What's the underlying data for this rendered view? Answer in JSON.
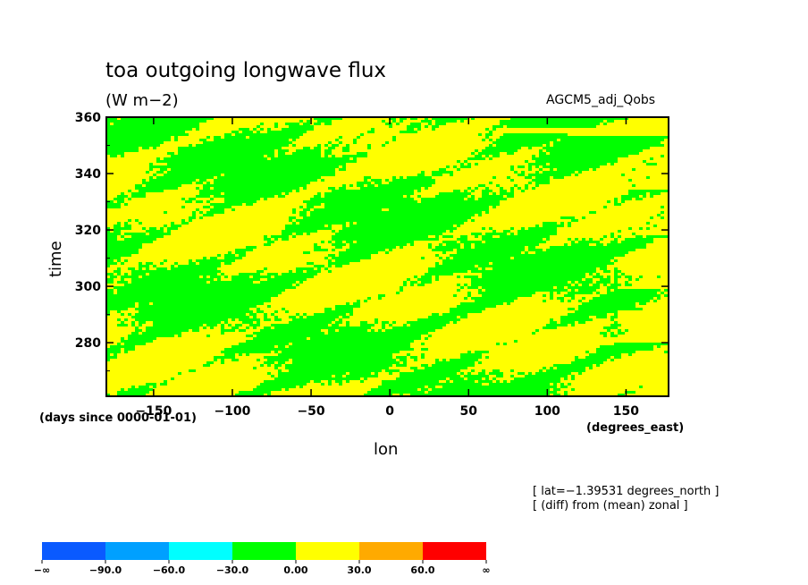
{
  "header": {
    "title": "toa outgoing longwave flux",
    "units": "(W m−2)",
    "model": "AGCM5_adj_Qobs"
  },
  "footer": {
    "time_units": "(days since 0000-01-01)",
    "lon_units": "(degrees_east)",
    "note_lat": "[ lat=−1.39531 degrees_north ]",
    "note_diff": "[ (diff) from (mean) zonal ]"
  },
  "chart_data": {
    "type": "heatmap",
    "title": "toa outgoing longwave flux",
    "subtitle": "(W m−2)",
    "xlabel": "lon",
    "ylabel": "time",
    "xlim": [
      -180,
      177
    ],
    "ylim": [
      261,
      360
    ],
    "x_ticks": [
      {
        "value": -150,
        "label": "−150"
      },
      {
        "value": -100,
        "label": "−100"
      },
      {
        "value": -50,
        "label": "−50"
      },
      {
        "value": 0,
        "label": "0"
      },
      {
        "value": 50,
        "label": "50"
      },
      {
        "value": 100,
        "label": "100"
      },
      {
        "value": 150,
        "label": "150"
      }
    ],
    "y_ticks": [
      {
        "value": 280,
        "label": "280"
      },
      {
        "value": 300,
        "label": "300"
      },
      {
        "value": 320,
        "label": "320"
      },
      {
        "value": 340,
        "label": "340"
      },
      {
        "value": 360,
        "label": "360"
      }
    ],
    "colorbar": {
      "colors": [
        "#0a5aff",
        "#00a0ff",
        "#00ffff",
        "#00ff00",
        "#ffff00",
        "#ffaa00",
        "#ff0000"
      ],
      "labels": [
        "−∞",
        "−90.0",
        "−60.0",
        "−30.0",
        "0.00",
        "30.0",
        "60.0",
        "∞"
      ]
    },
    "visible_levels": {
      "low": "#00ff00",
      "high": "#ffff00"
    }
  }
}
